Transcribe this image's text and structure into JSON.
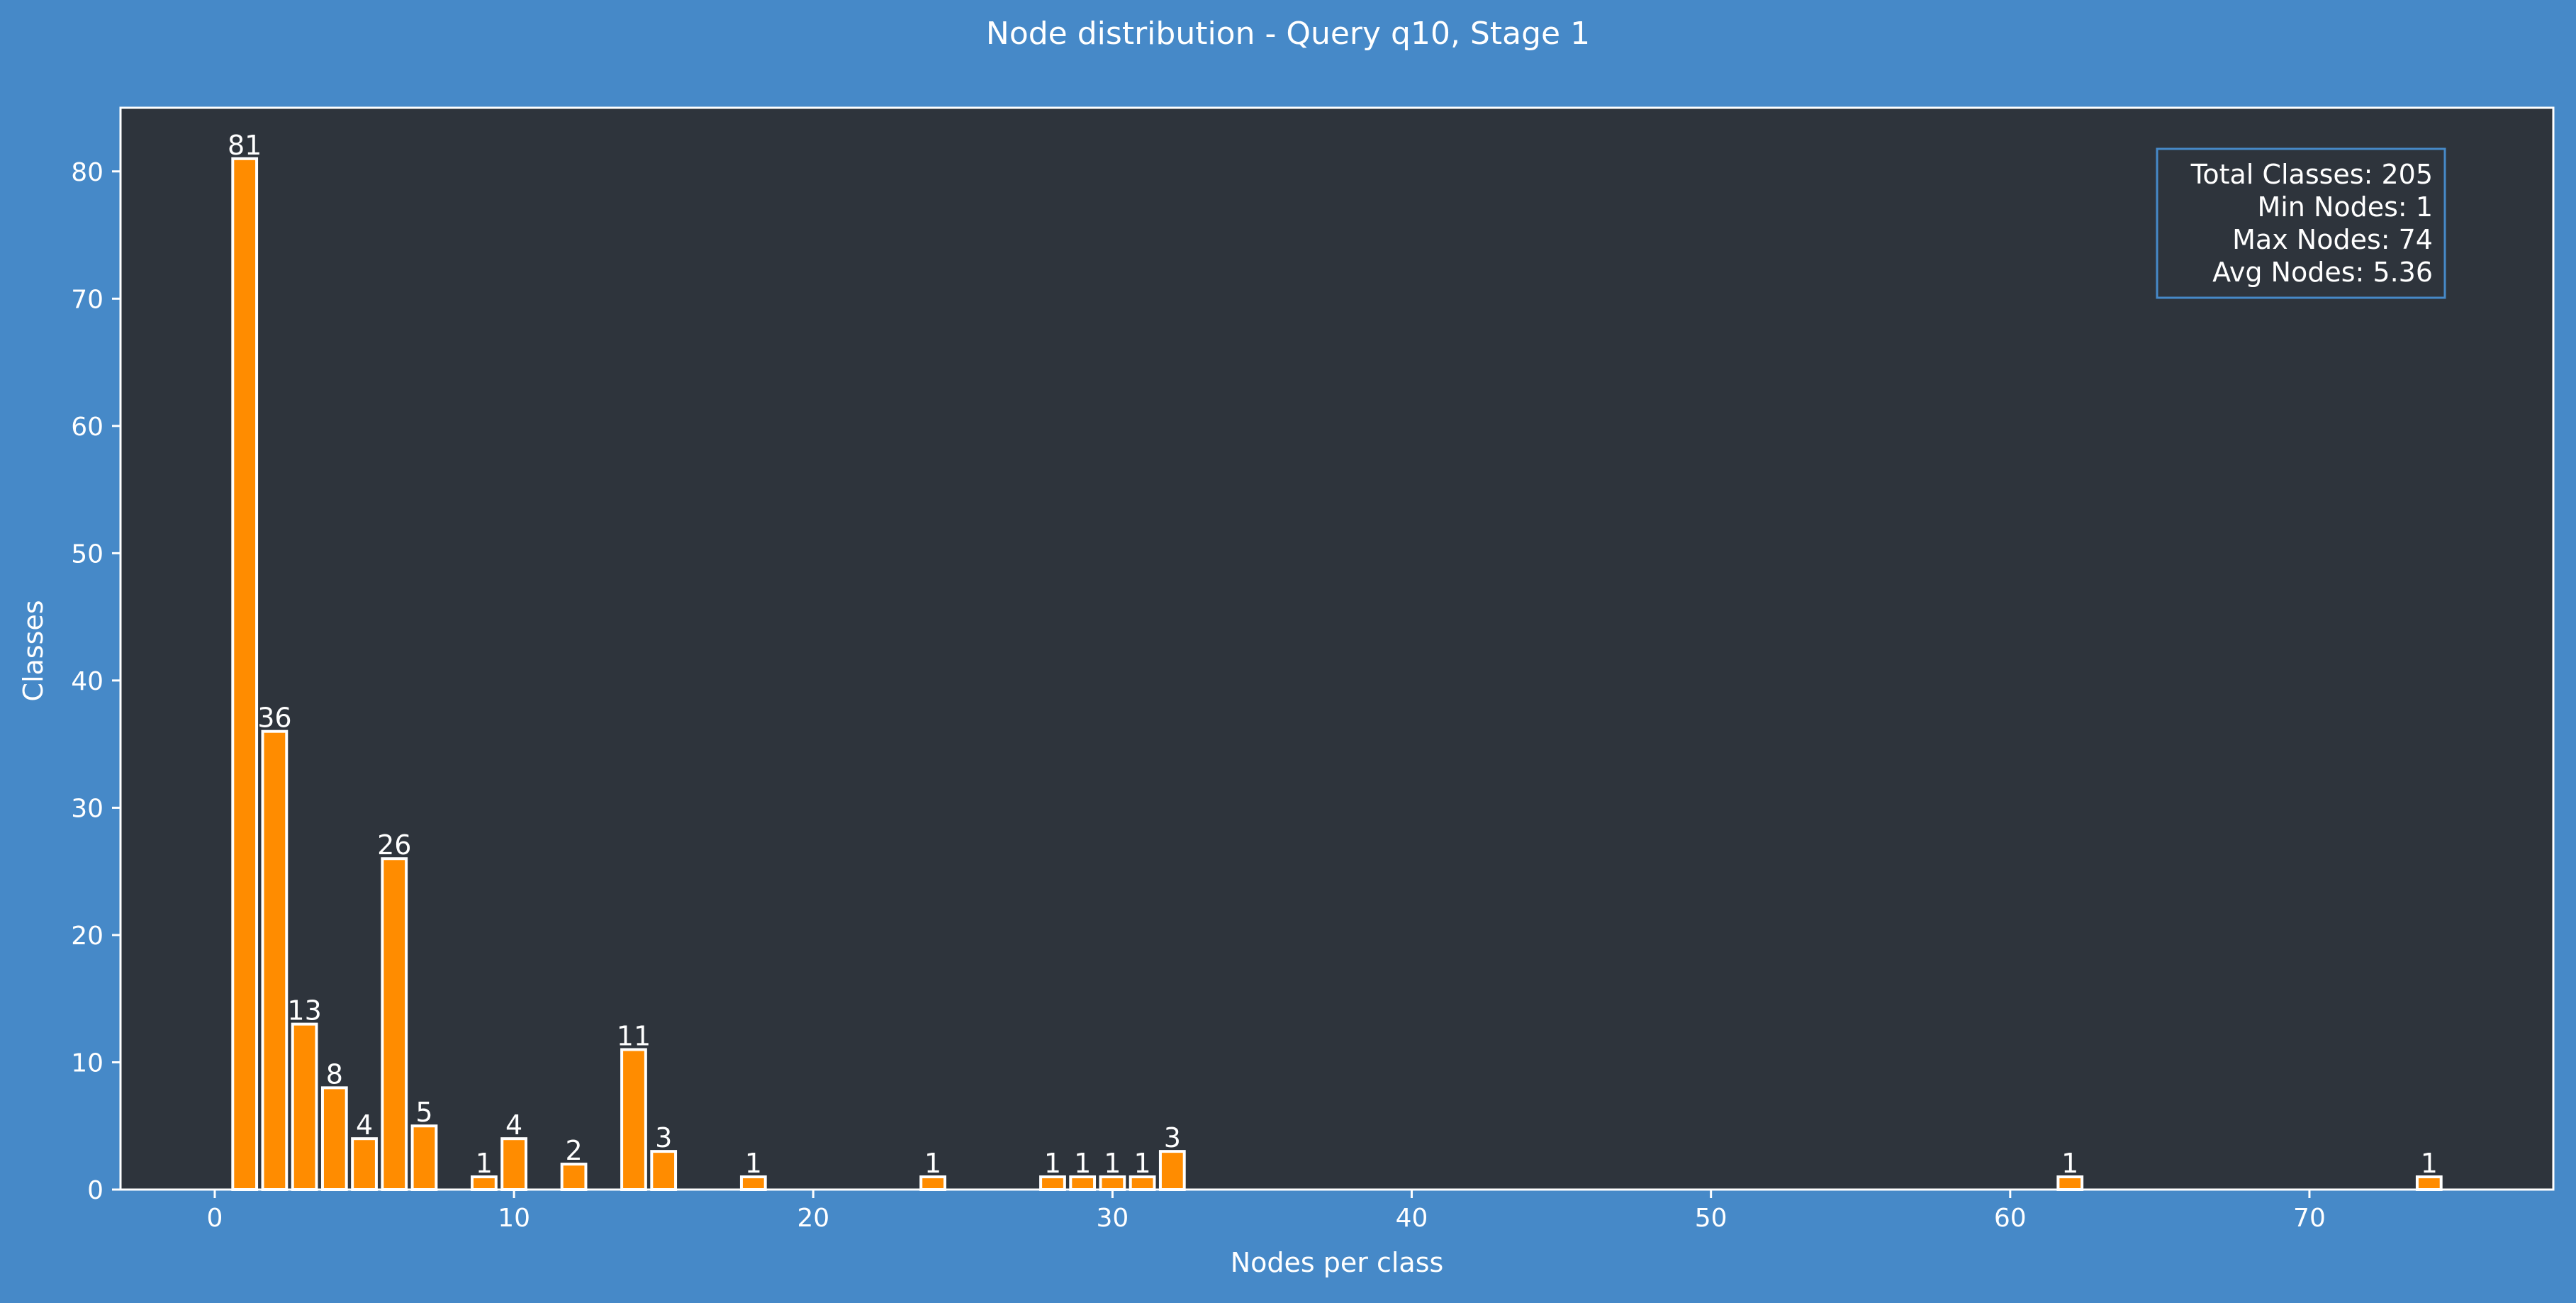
{
  "colors": {
    "figure_background": "#4689c8",
    "plot_background": "#2e343c",
    "bar_fill": "#ff8c00",
    "bar_edge": "#ffffff",
    "text": "#ffffff",
    "stats_box_edge": "#4689c8"
  },
  "chart_data": {
    "type": "bar",
    "title": "Node distribution - Query q10, Stage 1",
    "xlabel": "Nodes per class",
    "ylabel": "Classes",
    "xlim": [
      -3.15,
      78.15
    ],
    "ylim": [
      0,
      85
    ],
    "xticks": [
      0,
      10,
      20,
      30,
      40,
      50,
      60,
      70
    ],
    "yticks": [
      0,
      10,
      20,
      30,
      40,
      50,
      60,
      70,
      80
    ],
    "grid": false,
    "x": [
      1,
      2,
      3,
      4,
      5,
      6,
      7,
      9,
      10,
      12,
      14,
      15,
      18,
      24,
      28,
      29,
      30,
      31,
      32,
      62,
      74
    ],
    "values": [
      81,
      36,
      13,
      8,
      4,
      26,
      5,
      1,
      4,
      2,
      11,
      3,
      1,
      1,
      1,
      1,
      1,
      1,
      3,
      1,
      1
    ],
    "data_labels": [
      "81",
      "36",
      "13",
      "8",
      "4",
      "26",
      "5",
      "1",
      "4",
      "2",
      "11",
      "3",
      "1",
      "1",
      "1",
      "1",
      "1",
      "1",
      "3",
      "1",
      "1"
    ],
    "stats_box": {
      "position": "top-right",
      "lines": [
        "Total Classes: 205",
        "Min Nodes: 1",
        "Max Nodes: 74",
        "Avg Nodes: 5.36"
      ]
    }
  }
}
